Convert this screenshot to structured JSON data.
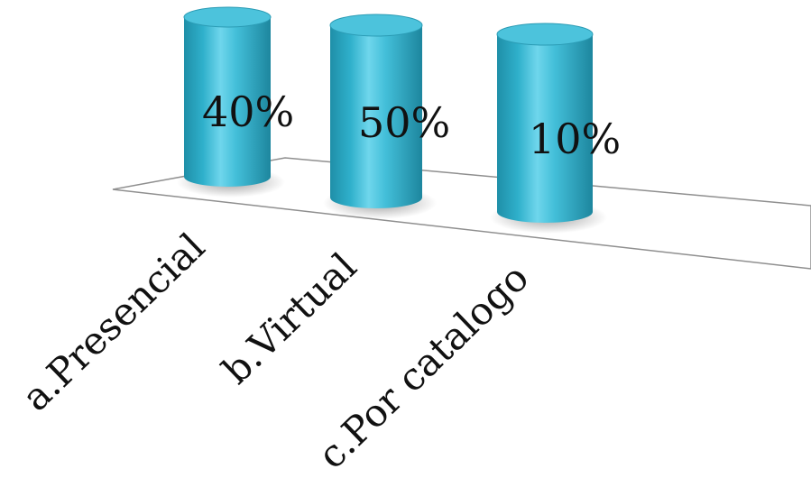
{
  "chart_data": {
    "type": "bar",
    "style": "3d-cylinder",
    "categories": [
      "a.Presencial",
      "b.Virtual",
      "c.Por catalogo"
    ],
    "values": [
      40,
      50,
      10
    ],
    "data_labels": [
      "40%",
      "50%",
      "10%"
    ],
    "title": "",
    "xlabel": "",
    "ylabel": "",
    "legend": "none",
    "grid": false,
    "colors": {
      "bar_side": "#2fa9c4",
      "bar_highlight": "#7fe0f2",
      "bar_top": "#4cc3dc",
      "floor_line": "#9a9a9a"
    }
  }
}
